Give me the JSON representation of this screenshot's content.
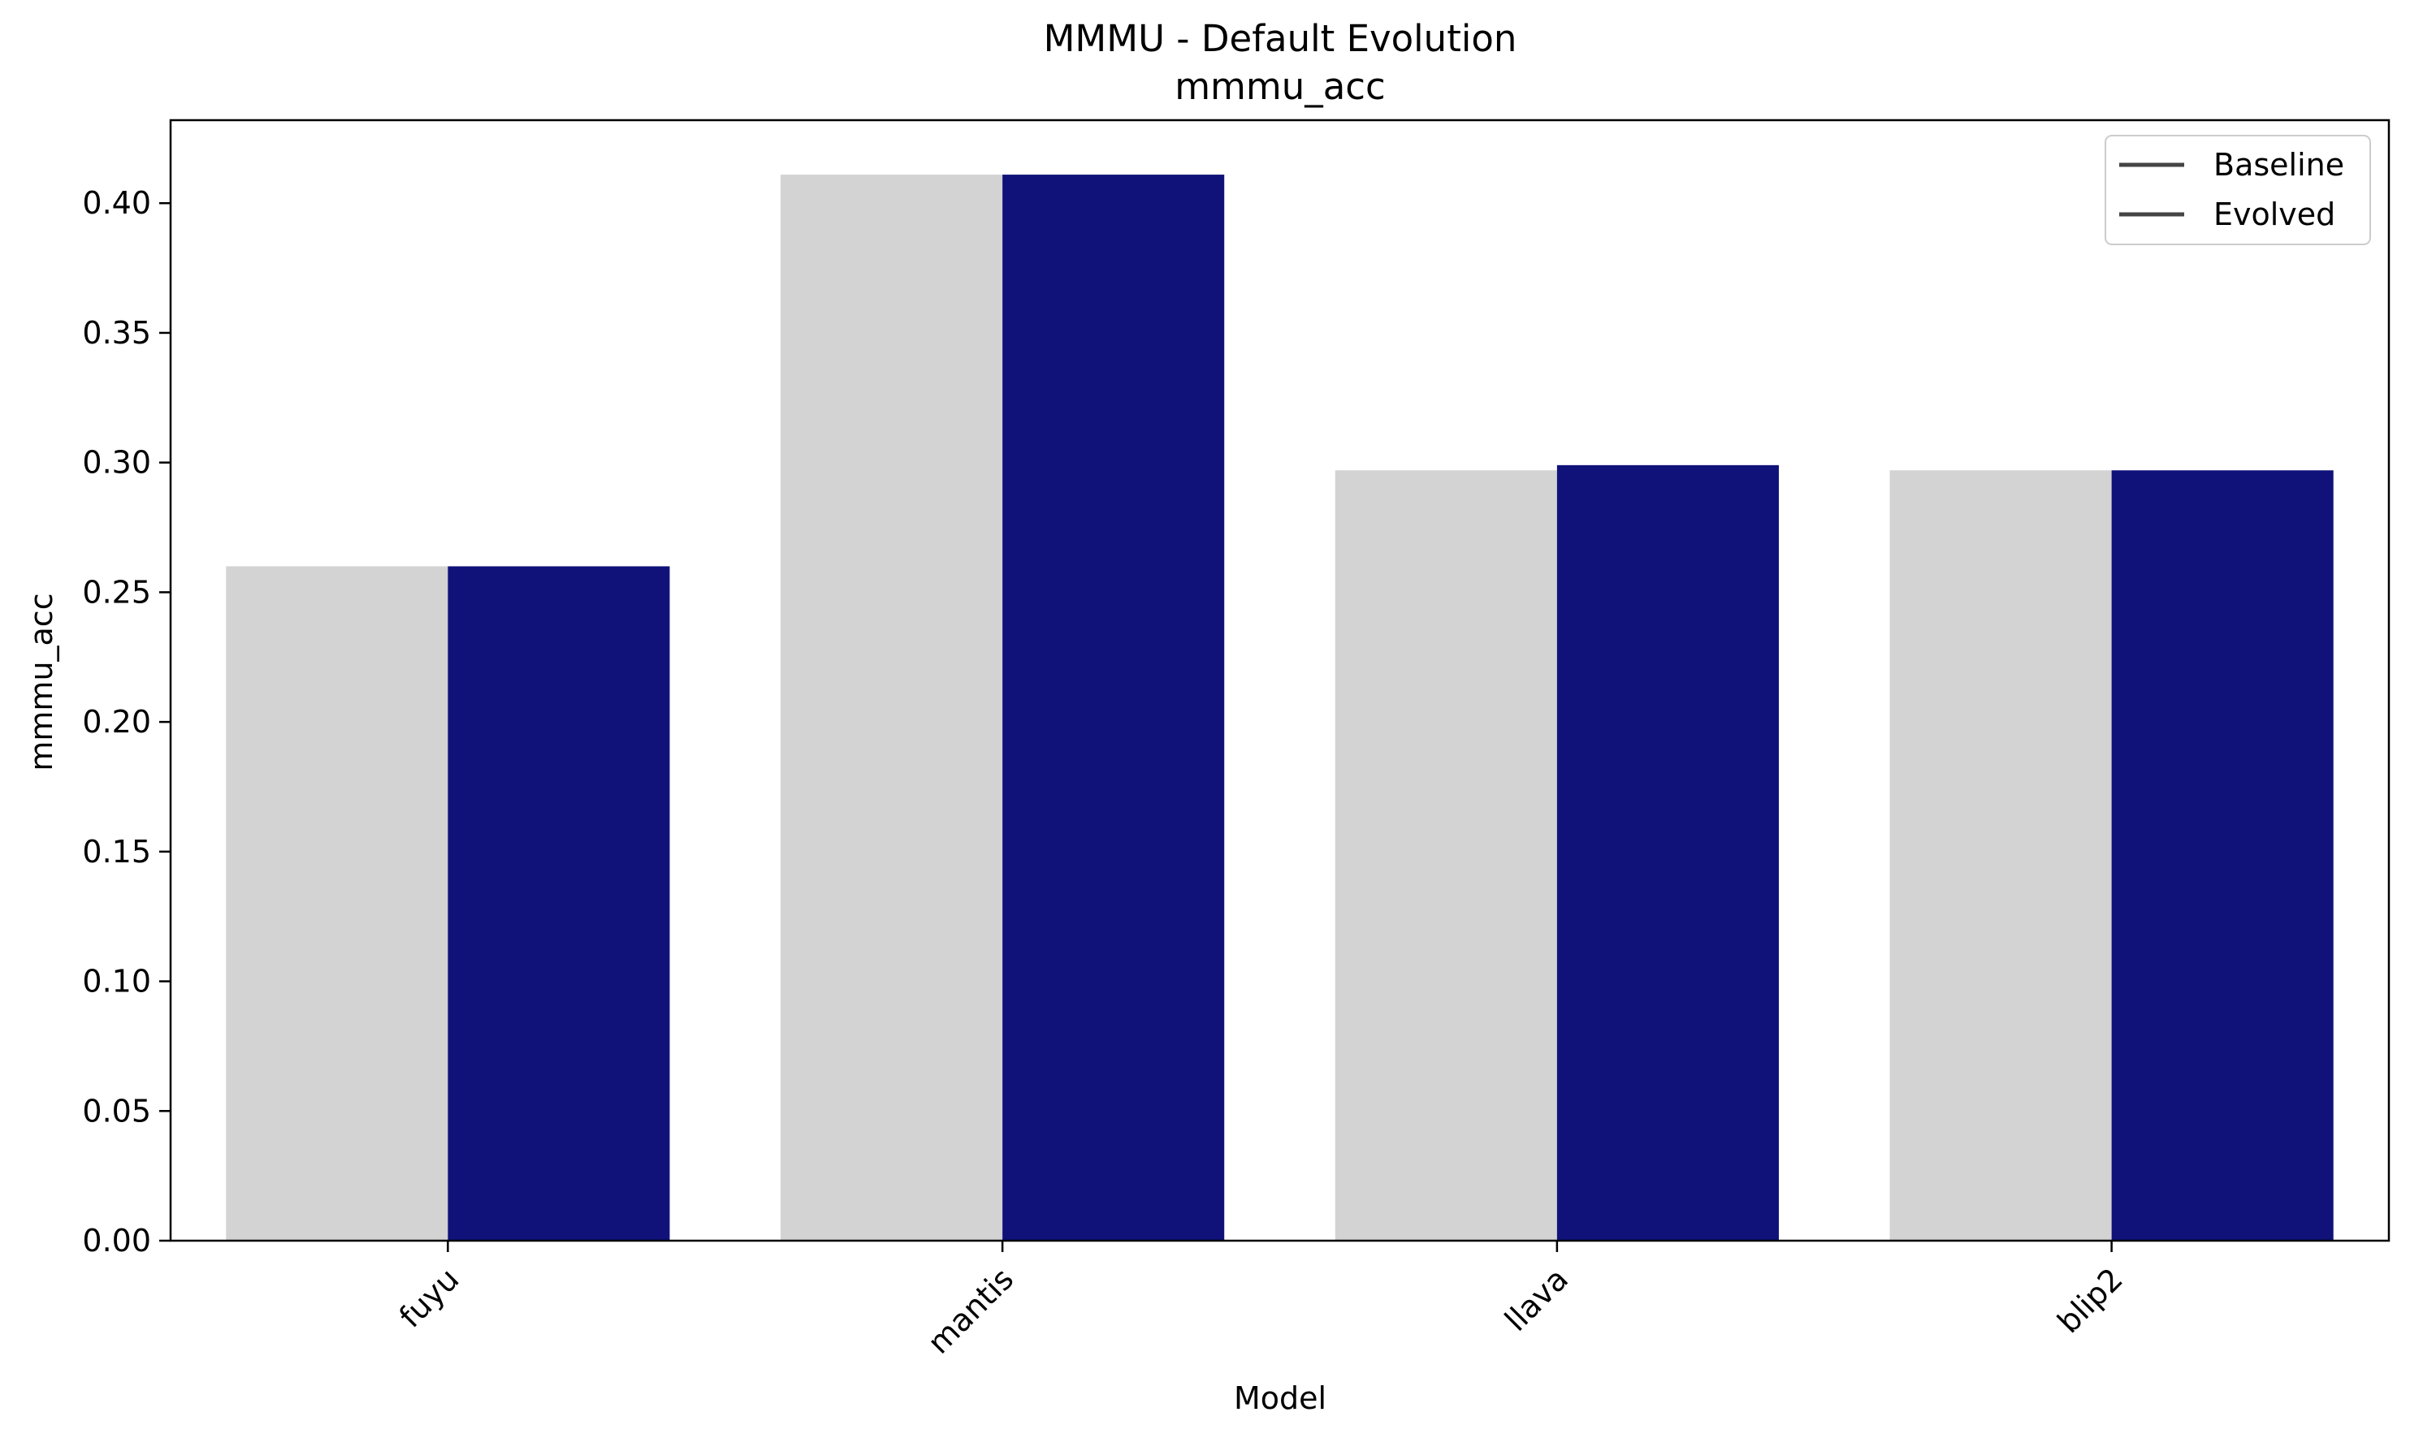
{
  "chart_data": {
    "type": "bar",
    "title": "MMMU - Default Evolution",
    "subtitle": "mmmu_acc",
    "xlabel": "Model",
    "ylabel": "mmmu_acc",
    "categories": [
      "fuyu",
      "mantis",
      "llava",
      "blip2"
    ],
    "series": [
      {
        "name": "Baseline",
        "color": "#d3d3d3",
        "values": [
          0.26,
          0.411,
          0.297,
          0.297
        ]
      },
      {
        "name": "Evolved",
        "color": "#10127a",
        "values": [
          0.26,
          0.411,
          0.299,
          0.297
        ]
      }
    ],
    "ylim": [
      0,
      0.432
    ],
    "yticks": [
      "0.00",
      "0.05",
      "0.10",
      "0.15",
      "0.20",
      "0.25",
      "0.30",
      "0.35",
      "0.40"
    ],
    "legend": {
      "placement": "top-right",
      "line_color": "#444444",
      "entries": [
        "Baseline",
        "Evolved"
      ]
    },
    "grid": false
  }
}
